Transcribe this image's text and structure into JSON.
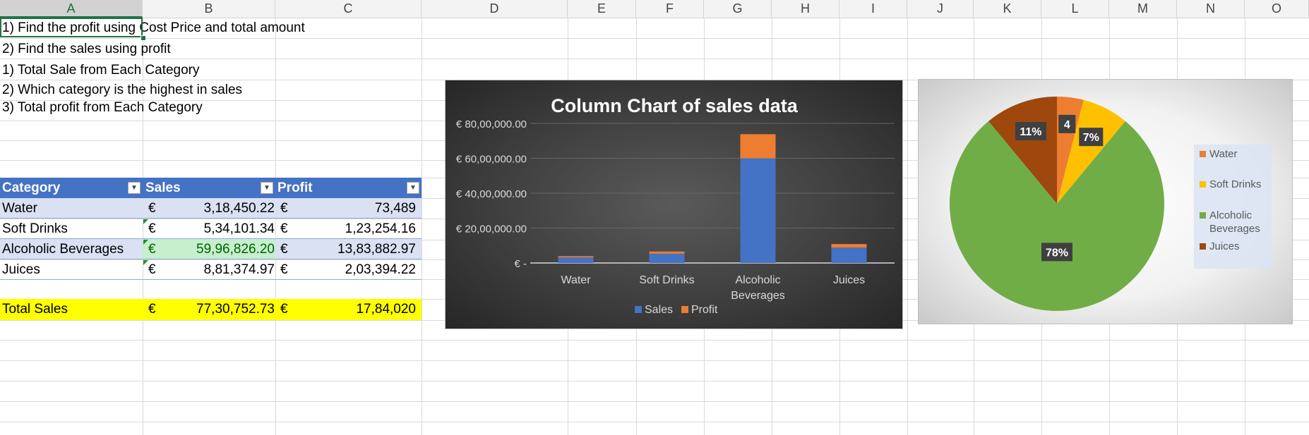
{
  "columns": [
    "A",
    "B",
    "C",
    "D",
    "E",
    "F",
    "G",
    "H",
    "I",
    "J",
    "K",
    "L",
    "M",
    "N",
    "O"
  ],
  "active_column": "A",
  "notes": [
    "1) Find the profit using Cost Price and total amount",
    "2) Find the sales using profit",
    "1) Total Sale from Each Category",
    "2) Which category is the highest in sales",
    "3) Total profit from Each Category"
  ],
  "table": {
    "headers": [
      "Category",
      "Sales",
      "Profit"
    ],
    "rows": [
      {
        "category": "Water",
        "sales_cur": "€",
        "sales": "3,18,450.22",
        "profit_cur": "€",
        "profit": "73,489"
      },
      {
        "category": "Soft Drinks",
        "sales_cur": "€",
        "sales": "5,34,101.34",
        "profit_cur": "€",
        "profit": "1,23,254.16"
      },
      {
        "category": "Alcoholic Beverages",
        "sales_cur": "€",
        "sales": "59,96,826.20",
        "profit_cur": "€",
        "profit": "13,83,882.97"
      },
      {
        "category": "Juices",
        "sales_cur": "€",
        "sales": "8,81,374.97",
        "profit_cur": "€",
        "profit": "2,03,394.22"
      }
    ],
    "highlight_color": "#c6efce",
    "highlight_text_color": "#006100"
  },
  "total": {
    "label": "Total Sales",
    "sales_cur": "€",
    "sales": "77,30,752.73",
    "profit_cur": "€",
    "profit": "17,84,020"
  },
  "chart_data": [
    {
      "type": "bar",
      "stacked": true,
      "title": "Column Chart of sales data",
      "categories": [
        "Water",
        "Soft Drinks",
        "Alcoholic Beverages",
        "Juices"
      ],
      "category_lines": [
        [
          "Water"
        ],
        [
          "Soft Drinks"
        ],
        [
          "Alcoholic",
          "Beverages"
        ],
        [
          "Juices"
        ]
      ],
      "series": [
        {
          "name": "Sales",
          "values": [
            318450.22,
            534101.34,
            5996826.2,
            881374.97
          ],
          "color": "#4472c4"
        },
        {
          "name": "Profit",
          "values": [
            73489,
            123254.16,
            1383882.97,
            203394.22
          ],
          "color": "#ed7d31"
        }
      ],
      "y_ticks": [
        "€ -",
        "€ 20,00,000.00",
        "€ 40,00,000.00",
        "€ 60,00,000.00",
        "€ 80,00,000.00"
      ],
      "ylim": [
        0,
        8000000
      ],
      "grid": true,
      "legend": "bottom"
    },
    {
      "type": "pie",
      "categories": [
        "Water",
        "Soft Drinks",
        "Alcoholic Beverages",
        "Juices"
      ],
      "legend_lines": [
        [
          "Water"
        ],
        [
          "Soft Drinks"
        ],
        [
          "Alcoholic",
          "Beverages"
        ],
        [
          "Juices"
        ]
      ],
      "values": [
        4,
        7,
        78,
        11
      ],
      "labels": [
        "4",
        "7%",
        "78%",
        "11%"
      ],
      "colors": [
        "#ed7d31",
        "#ffc000",
        "#70ad47",
        "#9e480e"
      ],
      "legend": "right"
    }
  ]
}
